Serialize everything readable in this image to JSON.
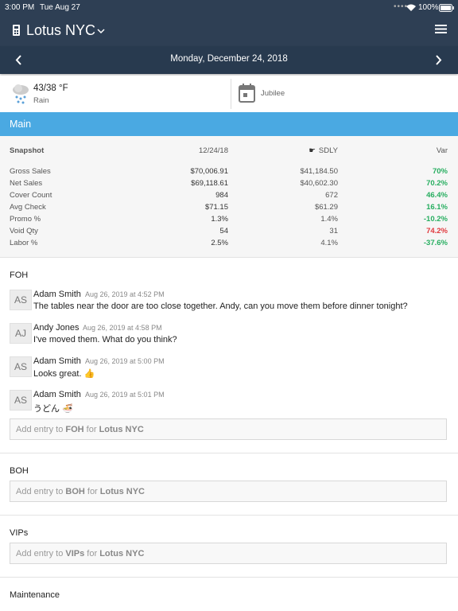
{
  "status_bar": {
    "time": "3:00 PM",
    "date": "Tue Aug 27",
    "battery": "100%"
  },
  "header": {
    "title": "Lotus NYC"
  },
  "date_bar": {
    "date": "Monday, December 24, 2018"
  },
  "weather": {
    "temperature": "43/38 °F",
    "condition": "Rain",
    "event": "Jubilee"
  },
  "section_title": "Main",
  "snapshot": {
    "columns": [
      "Snapshot",
      "12/24/18",
      "SDLY",
      "Var"
    ],
    "rows": [
      {
        "label": "Gross Sales",
        "current": "$70,006.91",
        "sdly": "$41,184.50",
        "var": "70%",
        "var_color": "#27ae60"
      },
      {
        "label": "Net Sales",
        "current": "$69,118.61",
        "sdly": "$40,602.30",
        "var": "70.2%",
        "var_color": "#27ae60"
      },
      {
        "label": "Cover Count",
        "current": "984",
        "sdly": "672",
        "var": "46.4%",
        "var_color": "#27ae60"
      },
      {
        "label": "Avg Check",
        "current": "$71.15",
        "sdly": "$61.29",
        "var": "16.1%",
        "var_color": "#27ae60"
      },
      {
        "label": "Promo %",
        "current": "1.3%",
        "sdly": "1.4%",
        "var": "-10.2%",
        "var_color": "#27ae60"
      },
      {
        "label": "Void Qty",
        "current": "54",
        "sdly": "31",
        "var": "74.2%",
        "var_color": "#e0393e"
      },
      {
        "label": "Labor %",
        "current": "2.5%",
        "sdly": "4.1%",
        "var": "-37.6%",
        "var_color": "#27ae60"
      }
    ]
  },
  "logs": [
    {
      "title": "FOH",
      "entries": [
        {
          "initials": "AS",
          "author": "Adam Smith",
          "time": "Aug 26, 2019 at 4:52 PM",
          "text": "The tables near the door are too close together. Andy, can you move them before dinner tonight?"
        },
        {
          "initials": "AJ",
          "author": "Andy Jones",
          "time": "Aug 26, 2019 at 4:58 PM",
          "text": "I've moved them. What do you think?"
        },
        {
          "initials": "AS",
          "author": "Adam Smith",
          "time": "Aug 26, 2019 at 5:00 PM",
          "text": "Looks great. 👍"
        },
        {
          "initials": "AS",
          "author": "Adam Smith",
          "time": "Aug 26, 2019 at 5:01 PM",
          "text": "うどん 🍜"
        }
      ],
      "placeholder": [
        "Add entry to ",
        "FOH",
        " for ",
        "Lotus NYC"
      ]
    },
    {
      "title": "BOH",
      "entries": [],
      "placeholder": [
        "Add entry to ",
        "BOH",
        " for ",
        "Lotus NYC"
      ]
    },
    {
      "title": "VIPs",
      "entries": [],
      "placeholder": [
        "Add entry to ",
        "VIPs",
        " for ",
        "Lotus NYC"
      ]
    },
    {
      "title": "Maintenance",
      "entries": [],
      "placeholder": []
    }
  ]
}
